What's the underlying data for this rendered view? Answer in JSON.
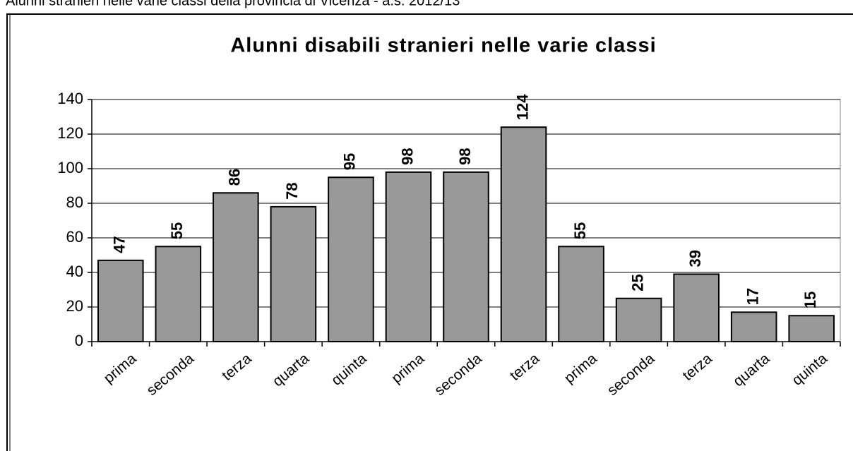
{
  "page_title": "Alunni stranieri nelle varie classi della provincia di Vicenza - a.s. 2012/13",
  "chart_data": {
    "type": "bar",
    "title": "Alunni disabili stranieri nelle varie classi",
    "categories": [
      "prima",
      "seconda",
      "terza",
      "quarta",
      "quinta",
      "prima",
      "seconda",
      "terza",
      "prima",
      "seconda",
      "terza",
      "quarta",
      "quinta"
    ],
    "values": [
      47,
      55,
      86,
      78,
      95,
      98,
      98,
      124,
      55,
      25,
      39,
      17,
      15
    ],
    "color": "#999999",
    "ylim": [
      0,
      140
    ],
    "yticks": [
      0,
      20,
      40,
      60,
      80,
      100,
      120,
      140
    ],
    "grid": true
  }
}
